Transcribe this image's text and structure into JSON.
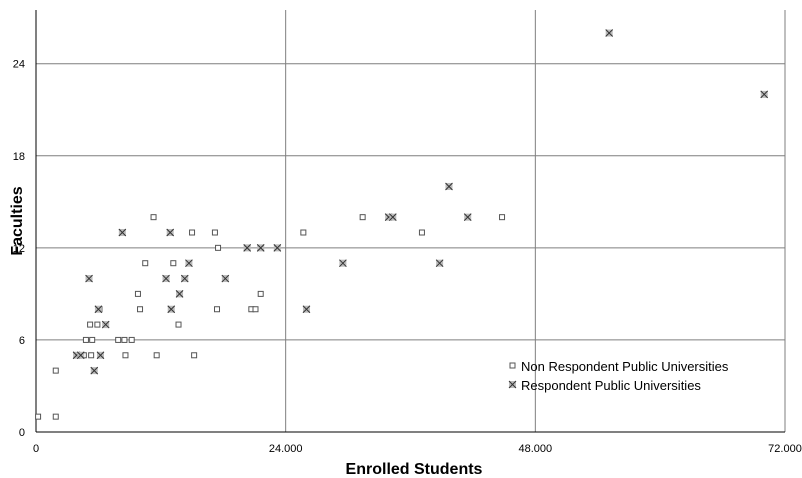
{
  "chart_data": {
    "type": "scatter",
    "title": "",
    "xlabel": "Enrolled Students",
    "ylabel": "Faculties",
    "xlim": [
      0,
      72000
    ],
    "ylim": [
      0,
      27.5
    ],
    "x_ticks": [
      0,
      24000,
      48000,
      72000
    ],
    "y_ticks": [
      0,
      6,
      12,
      18,
      24
    ],
    "x_tick_labels": [
      "0",
      "24.000",
      "48.000",
      "72.000"
    ],
    "y_tick_labels": [
      "0",
      "6",
      "12",
      "18",
      "24"
    ],
    "grid": true,
    "legend_position": "bottom-right",
    "series": [
      {
        "name": "Non Respondent Public Universities",
        "marker": "square",
        "color": "#555555",
        "points": [
          [
            200,
            1
          ],
          [
            1900,
            1
          ],
          [
            1900,
            4
          ],
          [
            4000,
            5
          ],
          [
            4600,
            5
          ],
          [
            4800,
            6
          ],
          [
            5200,
            7
          ],
          [
            5300,
            5
          ],
          [
            5400,
            6
          ],
          [
            5900,
            7
          ],
          [
            6100,
            8
          ],
          [
            6200,
            5
          ],
          [
            7900,
            6
          ],
          [
            8500,
            6
          ],
          [
            8600,
            5
          ],
          [
            9200,
            6
          ],
          [
            9800,
            9
          ],
          [
            10000,
            8
          ],
          [
            10500,
            11
          ],
          [
            11300,
            14
          ],
          [
            11600,
            5
          ],
          [
            13200,
            11
          ],
          [
            13700,
            7
          ],
          [
            15000,
            13
          ],
          [
            15200,
            5
          ],
          [
            17200,
            13
          ],
          [
            17500,
            12
          ],
          [
            17400,
            8
          ],
          [
            20700,
            8
          ],
          [
            21100,
            8
          ],
          [
            21600,
            9
          ],
          [
            25700,
            13
          ],
          [
            31400,
            14
          ],
          [
            37100,
            13
          ],
          [
            44800,
            14
          ]
        ]
      },
      {
        "name": "Respondent Public Universities",
        "marker": "x",
        "color": "#444444",
        "points": [
          [
            3900,
            5
          ],
          [
            4300,
            5
          ],
          [
            5100,
            10
          ],
          [
            5600,
            4
          ],
          [
            6000,
            8
          ],
          [
            6200,
            5
          ],
          [
            6700,
            7
          ],
          [
            8300,
            13
          ],
          [
            12500,
            10
          ],
          [
            12900,
            13
          ],
          [
            13000,
            8
          ],
          [
            13800,
            9
          ],
          [
            14300,
            10
          ],
          [
            14700,
            11
          ],
          [
            18200,
            10
          ],
          [
            20300,
            12
          ],
          [
            21600,
            12
          ],
          [
            23200,
            12
          ],
          [
            26000,
            8
          ],
          [
            29500,
            11
          ],
          [
            33900,
            14
          ],
          [
            34300,
            14
          ],
          [
            38800,
            11
          ],
          [
            39700,
            16
          ],
          [
            41500,
            14
          ],
          [
            55100,
            26
          ],
          [
            70000,
            22
          ]
        ]
      }
    ]
  }
}
